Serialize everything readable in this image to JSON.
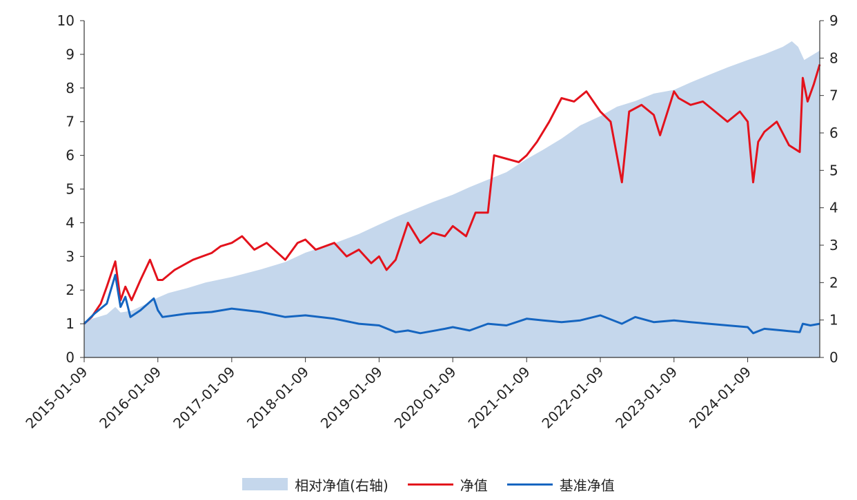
{
  "chart_data": {
    "type": "line",
    "title": "",
    "x_ticks": [
      "2015-01-09",
      "2016-01-09",
      "2017-01-09",
      "2018-01-09",
      "2019-01-09",
      "2020-01-09",
      "2021-01-09",
      "2022-01-09",
      "2023-01-09",
      "2024-01-09"
    ],
    "x_range": [
      "2015-01-09",
      "2024-12-31"
    ],
    "ylim_left": [
      0,
      10
    ],
    "y_ticks_left": [
      "0",
      "1",
      "2",
      "3",
      "4",
      "5",
      "6",
      "7",
      "8",
      "9",
      "10"
    ],
    "ylim_right": [
      0,
      9
    ],
    "y_ticks_right": [
      "0",
      "1",
      "2",
      "3",
      "4",
      "5",
      "6",
      "7",
      "8",
      "9"
    ],
    "grid": false,
    "legend_position": "bottom-center",
    "colors": {
      "area": "#c5d7ec",
      "net_value": "#e3121c",
      "benchmark": "#1565c0"
    },
    "series": [
      {
        "name": "相对净值(右轴)",
        "type": "area",
        "axis": "right",
        "x": [
          "2015-01-09",
          "2015-03-01",
          "2015-05-01",
          "2015-06-12",
          "2015-07-08",
          "2015-09-01",
          "2015-11-01",
          "2016-01-09",
          "2016-03-01",
          "2016-06-01",
          "2016-09-01",
          "2017-01-09",
          "2017-06-01",
          "2017-10-01",
          "2018-01-09",
          "2018-06-01",
          "2018-10-01",
          "2019-01-09",
          "2019-04-01",
          "2019-07-01",
          "2019-10-01",
          "2020-01-09",
          "2020-04-01",
          "2020-07-01",
          "2020-10-01",
          "2021-01-09",
          "2021-04-01",
          "2021-07-01",
          "2021-10-01",
          "2022-01-09",
          "2022-04-01",
          "2022-07-01",
          "2022-10-01",
          "2023-01-09",
          "2023-04-01",
          "2023-07-01",
          "2023-10-01",
          "2024-01-09",
          "2024-04-01",
          "2024-07-01",
          "2024-08-15",
          "2024-09-15",
          "2024-10-15",
          "2024-11-15",
          "2024-12-31"
        ],
        "values": [
          0.97,
          1.05,
          1.15,
          1.35,
          1.2,
          1.25,
          1.4,
          1.6,
          1.72,
          1.85,
          2.0,
          2.15,
          2.35,
          2.55,
          2.8,
          3.05,
          3.3,
          3.55,
          3.75,
          3.95,
          4.15,
          4.35,
          4.55,
          4.75,
          4.95,
          5.3,
          5.55,
          5.85,
          6.2,
          6.45,
          6.7,
          6.85,
          7.05,
          7.15,
          7.35,
          7.55,
          7.75,
          7.95,
          8.1,
          8.3,
          8.45,
          8.3,
          7.95,
          8.05,
          8.2
        ]
      },
      {
        "name": "净值",
        "type": "line",
        "axis": "left",
        "x": [
          "2015-01-09",
          "2015-02-15",
          "2015-04-01",
          "2015-05-01",
          "2015-06-12",
          "2015-07-08",
          "2015-08-01",
          "2015-09-01",
          "2015-10-15",
          "2015-12-01",
          "2016-01-09",
          "2016-02-01",
          "2016-04-01",
          "2016-07-01",
          "2016-10-01",
          "2017-01-09",
          "2016-11-15",
          "2017-03-01",
          "2017-05-01",
          "2017-07-01",
          "2017-10-01",
          "2017-12-01",
          "2018-01-09",
          "2018-03-01",
          "2018-06-01",
          "2018-08-01",
          "2018-10-01",
          "2018-12-01",
          "2019-01-09",
          "2019-02-15",
          "2019-04-01",
          "2019-06-01",
          "2019-08-01",
          "2019-10-01",
          "2019-12-01",
          "2020-01-09",
          "2020-03-15",
          "2020-05-01",
          "2020-07-01",
          "2020-08-01",
          "2020-10-01",
          "2020-12-01",
          "2021-01-09",
          "2021-03-01",
          "2021-05-01",
          "2021-07-01",
          "2021-09-01",
          "2021-11-01",
          "2022-01-09",
          "2022-03-01",
          "2022-04-26",
          "2022-06-01",
          "2022-08-01",
          "2022-10-01",
          "2022-11-01",
          "2023-01-09",
          "2023-02-01",
          "2023-04-01",
          "2023-06-01",
          "2023-08-01",
          "2023-10-01",
          "2023-12-01",
          "2024-01-09",
          "2024-02-05",
          "2024-03-01",
          "2024-04-01",
          "2024-06-01",
          "2024-08-01",
          "2024-09-23",
          "2024-10-08",
          "2024-11-01",
          "2024-12-01",
          "2024-12-31"
        ],
        "values": [
          1.0,
          1.2,
          1.6,
          2.1,
          2.85,
          1.7,
          2.1,
          1.7,
          2.3,
          2.9,
          2.3,
          2.3,
          2.6,
          2.9,
          3.1,
          3.4,
          3.3,
          3.6,
          3.2,
          3.4,
          2.9,
          3.4,
          3.5,
          3.2,
          3.4,
          3.0,
          3.2,
          2.8,
          3.0,
          2.6,
          2.9,
          4.0,
          3.4,
          3.7,
          3.6,
          3.9,
          3.6,
          4.3,
          4.3,
          6.0,
          5.9,
          5.8,
          6.0,
          6.4,
          7.0,
          7.7,
          7.6,
          7.9,
          7.3,
          7.0,
          5.2,
          7.3,
          7.5,
          7.2,
          6.6,
          7.9,
          7.7,
          7.5,
          7.6,
          7.3,
          7.0,
          7.3,
          7.0,
          5.2,
          6.4,
          6.7,
          7.0,
          6.3,
          6.1,
          8.3,
          7.6,
          8.1,
          8.7
        ]
      },
      {
        "name": "基准净值",
        "type": "line",
        "axis": "left",
        "x": [
          "2015-01-09",
          "2015-03-01",
          "2015-05-01",
          "2015-06-12",
          "2015-07-08",
          "2015-08-01",
          "2015-08-26",
          "2015-10-15",
          "2015-12-20",
          "2016-01-09",
          "2016-02-01",
          "2016-06-01",
          "2016-10-01",
          "2017-01-09",
          "2017-06-01",
          "2017-10-01",
          "2018-01-09",
          "2018-06-01",
          "2018-10-01",
          "2019-01-09",
          "2019-04-01",
          "2019-06-01",
          "2019-08-01",
          "2019-12-01",
          "2020-01-09",
          "2020-04-01",
          "2020-07-01",
          "2020-10-01",
          "2021-01-09",
          "2021-04-01",
          "2021-07-01",
          "2021-10-01",
          "2022-01-09",
          "2022-04-26",
          "2022-07-01",
          "2022-10-01",
          "2023-01-09",
          "2023-04-01",
          "2023-07-01",
          "2023-10-01",
          "2024-01-09",
          "2024-02-05",
          "2024-04-01",
          "2024-07-01",
          "2024-09-23",
          "2024-10-08",
          "2024-11-15",
          "2024-12-31"
        ],
        "values": [
          1.0,
          1.3,
          1.6,
          2.45,
          1.5,
          1.8,
          1.2,
          1.4,
          1.75,
          1.4,
          1.2,
          1.3,
          1.35,
          1.45,
          1.35,
          1.2,
          1.25,
          1.15,
          1.0,
          0.95,
          0.75,
          0.8,
          0.72,
          0.85,
          0.9,
          0.8,
          1.0,
          0.95,
          1.15,
          1.1,
          1.05,
          1.1,
          1.25,
          1.0,
          1.2,
          1.05,
          1.1,
          1.05,
          1.0,
          0.95,
          0.9,
          0.72,
          0.85,
          0.8,
          0.75,
          1.0,
          0.95,
          1.0
        ]
      }
    ]
  }
}
